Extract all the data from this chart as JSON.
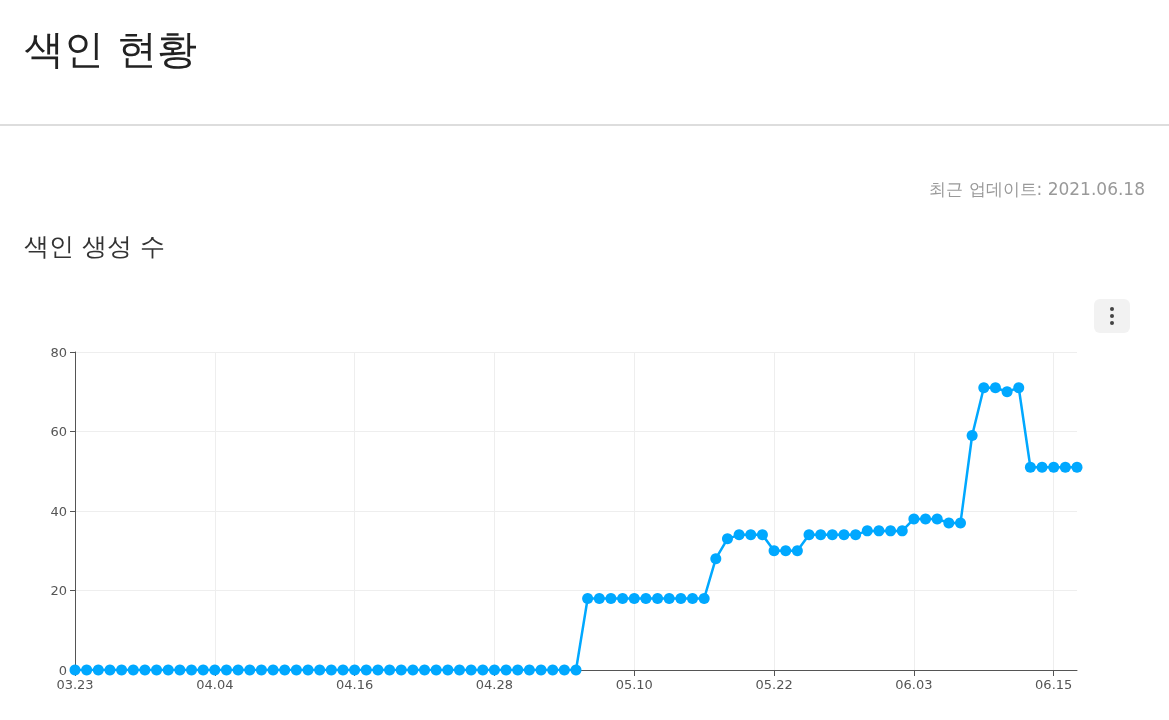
{
  "chart_data": {
    "type": "line",
    "title": "색인 현황",
    "subtitle": "색인 생성 수",
    "annotations": [
      "최근 업데이트: 2021.06.18"
    ],
    "categories": [
      "03.23",
      null,
      null,
      null,
      null,
      null,
      null,
      null,
      null,
      null,
      null,
      null,
      "04.04",
      null,
      null,
      null,
      null,
      null,
      null,
      null,
      null,
      null,
      null,
      null,
      "04.16",
      null,
      null,
      null,
      null,
      null,
      null,
      null,
      null,
      null,
      null,
      null,
      "04.28",
      null,
      null,
      null,
      null,
      null,
      null,
      null,
      null,
      null,
      null,
      null,
      "05.10",
      null,
      null,
      null,
      null,
      null,
      null,
      null,
      null,
      null,
      null,
      null,
      "05.22",
      null,
      null,
      null,
      null,
      null,
      null,
      null,
      null,
      null,
      null,
      null,
      "06.03",
      null,
      null,
      null,
      null,
      null,
      null,
      null,
      null,
      null,
      null,
      null,
      "06.15",
      null,
      null
    ],
    "series": [
      {
        "color": "#00a8ff",
        "values": [
          0,
          0,
          0,
          0,
          0,
          0,
          0,
          0,
          0,
          0,
          0,
          0,
          0,
          0,
          0,
          0,
          0,
          0,
          0,
          0,
          0,
          0,
          0,
          0,
          0,
          0,
          0,
          0,
          0,
          0,
          0,
          0,
          0,
          0,
          0,
          0,
          0,
          0,
          0,
          0,
          0,
          0,
          0,
          0,
          18,
          18,
          18,
          18,
          18,
          18,
          18,
          18,
          18,
          18,
          18,
          28,
          33,
          34,
          34,
          34,
          30,
          30,
          30,
          34,
          34,
          34,
          34,
          34,
          35,
          35,
          35,
          35,
          38,
          38,
          38,
          37,
          37,
          59,
          71,
          71,
          70,
          71,
          51,
          51,
          51,
          51,
          51
        ]
      }
    ],
    "ylim": [
      0,
      80
    ],
    "yticks": [
      0,
      20,
      40,
      60,
      80
    ],
    "grid": true,
    "marker": "circle",
    "line_style": "solid"
  }
}
